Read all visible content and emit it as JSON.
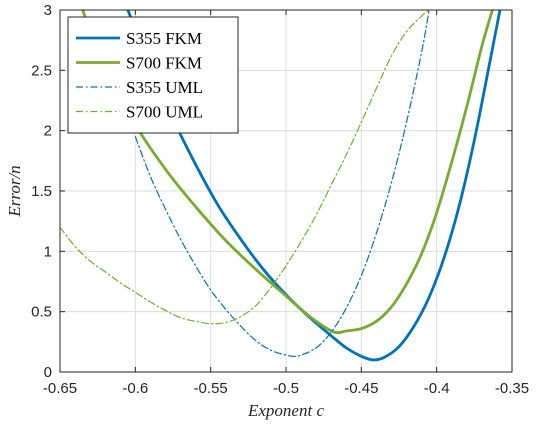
{
  "chart_data": {
    "type": "line",
    "xlabel": "Exponent c",
    "ylabel": "Error/n",
    "xlim": [
      -0.65,
      -0.35
    ],
    "ylim": [
      0,
      3
    ],
    "xticks": [
      -0.65,
      -0.6,
      -0.55,
      -0.5,
      -0.45,
      -0.4,
      -0.35
    ],
    "xtick_labels": [
      "-0.65",
      "-0.6",
      "-0.55",
      "-0.5",
      "-0.45",
      "-0.4",
      "-0.35"
    ],
    "yticks": [
      0,
      0.5,
      1,
      1.5,
      2,
      2.5,
      3
    ],
    "ytick_labels": [
      "0",
      "0.5",
      "1",
      "1.5",
      "2",
      "2.5",
      "3"
    ],
    "grid": true,
    "legend_position": "top-left",
    "series": [
      {
        "name": "S355 FKM",
        "color": "#0072BD",
        "style": "solid",
        "x": [
          -0.605,
          -0.59,
          -0.575,
          -0.56,
          -0.545,
          -0.53,
          -0.515,
          -0.5,
          -0.485,
          -0.47,
          -0.46,
          -0.45,
          -0.442,
          -0.435,
          -0.425,
          -0.415,
          -0.405,
          -0.395,
          -0.385,
          -0.375,
          -0.365,
          -0.358
        ],
        "y": [
          3.0,
          2.55,
          2.1,
          1.72,
          1.38,
          1.1,
          0.85,
          0.64,
          0.46,
          0.3,
          0.2,
          0.13,
          0.1,
          0.12,
          0.21,
          0.38,
          0.62,
          0.95,
          1.38,
          1.92,
          2.55,
          3.0
        ]
      },
      {
        "name": "S700 FKM",
        "color": "#77AC30",
        "style": "solid",
        "x": [
          -0.635,
          -0.62,
          -0.6,
          -0.58,
          -0.56,
          -0.54,
          -0.52,
          -0.5,
          -0.49,
          -0.48,
          -0.468,
          -0.46,
          -0.45,
          -0.44,
          -0.43,
          -0.42,
          -0.41,
          -0.4,
          -0.39,
          -0.38,
          -0.37,
          -0.363
        ],
        "y": [
          3.0,
          2.52,
          2.05,
          1.68,
          1.37,
          1.09,
          0.85,
          0.63,
          0.52,
          0.42,
          0.33,
          0.34,
          0.36,
          0.42,
          0.54,
          0.73,
          0.98,
          1.32,
          1.74,
          2.2,
          2.7,
          3.0
        ]
      },
      {
        "name": "S355 UML",
        "color": "#0072BD",
        "style": "dashdot",
        "x": [
          -0.6,
          -0.59,
          -0.58,
          -0.57,
          -0.56,
          -0.55,
          -0.54,
          -0.53,
          -0.52,
          -0.51,
          -0.5,
          -0.495,
          -0.49,
          -0.48,
          -0.47,
          -0.46,
          -0.45,
          -0.44,
          -0.43,
          -0.42,
          -0.41,
          -0.405
        ],
        "y": [
          1.95,
          1.62,
          1.35,
          1.1,
          0.88,
          0.68,
          0.52,
          0.38,
          0.26,
          0.18,
          0.14,
          0.13,
          0.14,
          0.2,
          0.33,
          0.53,
          0.8,
          1.15,
          1.57,
          2.07,
          2.65,
          3.0
        ]
      },
      {
        "name": "S700 UML",
        "color": "#77AC30",
        "style": "dashdot",
        "x": [
          -0.65,
          -0.64,
          -0.63,
          -0.62,
          -0.61,
          -0.6,
          -0.59,
          -0.58,
          -0.57,
          -0.56,
          -0.55,
          -0.54,
          -0.53,
          -0.52,
          -0.51,
          -0.5,
          -0.49,
          -0.48,
          -0.47,
          -0.46,
          -0.45,
          -0.44,
          -0.43,
          -0.42,
          -0.41,
          -0.405
        ],
        "y": [
          1.2,
          1.04,
          0.92,
          0.83,
          0.74,
          0.66,
          0.58,
          0.51,
          0.45,
          0.42,
          0.4,
          0.41,
          0.46,
          0.55,
          0.7,
          0.88,
          1.08,
          1.3,
          1.55,
          1.8,
          2.07,
          2.35,
          2.62,
          2.82,
          2.95,
          3.0
        ]
      }
    ]
  }
}
